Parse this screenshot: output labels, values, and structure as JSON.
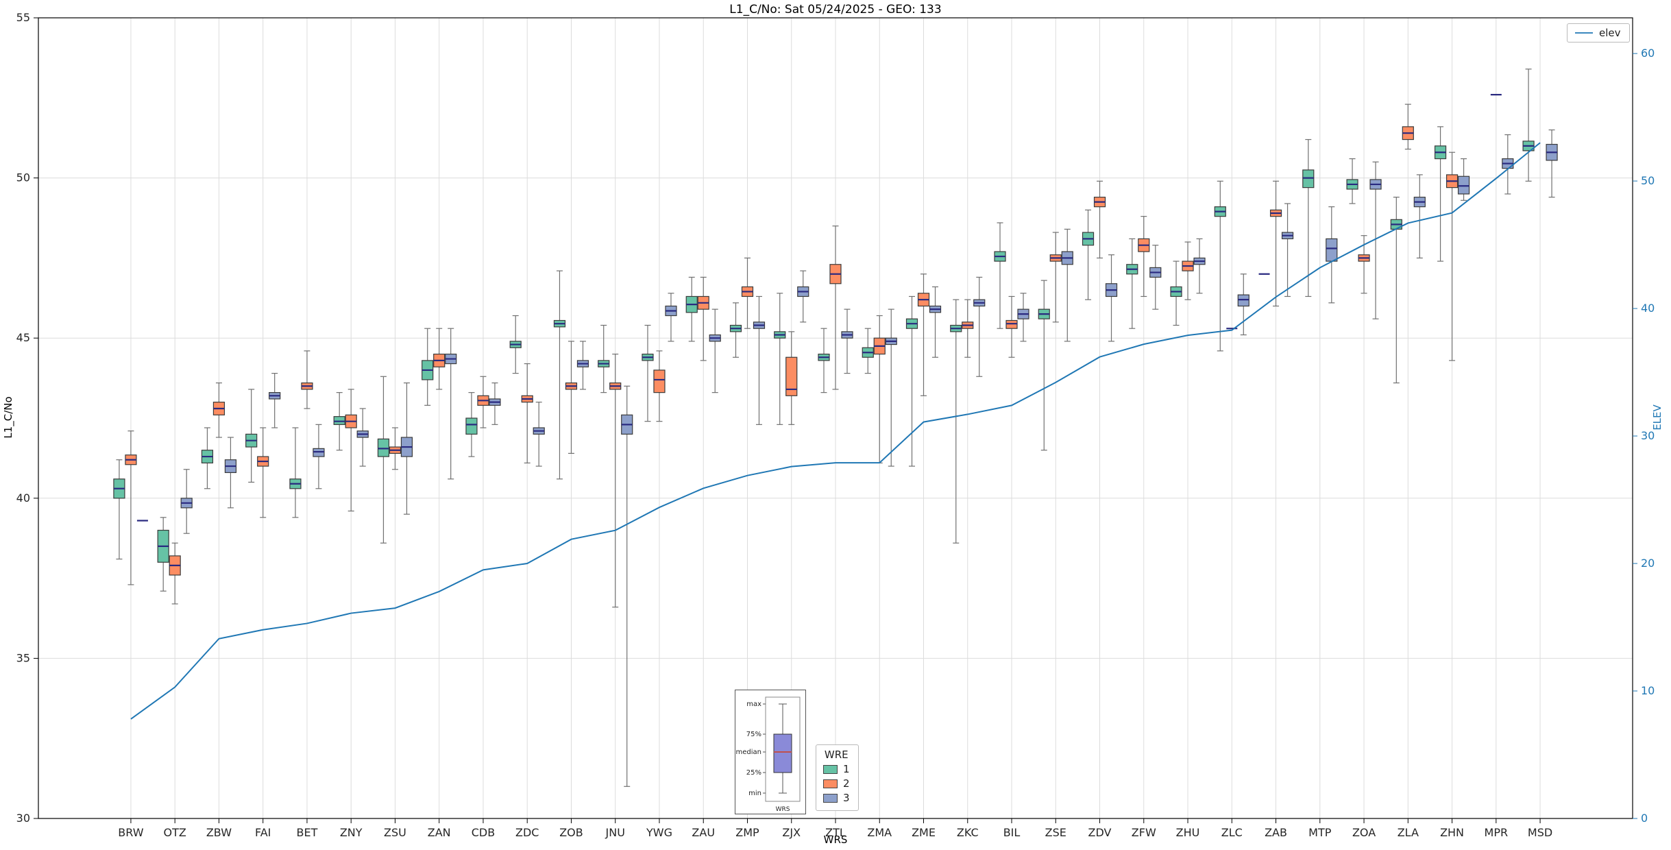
{
  "chart_data": {
    "type": "boxplot+line",
    "title": "L1_C/No: Sat 05/24/2025 - GEO: 133",
    "xlabel": "WRS",
    "ylabel_left": "L1_C/No",
    "ylabel_right": "ELEV",
    "ylim_left": [
      30,
      55
    ],
    "ylim_right": [
      0,
      62.8
    ],
    "yticks_left": [
      30,
      35,
      40,
      45,
      50,
      55
    ],
    "yticks_right": [
      0,
      10,
      20,
      30,
      40,
      50,
      60
    ],
    "grid": true,
    "categories": [
      "BRW",
      "OTZ",
      "ZBW",
      "FAI",
      "BET",
      "ZNY",
      "ZSU",
      "ZAN",
      "CDB",
      "ZDC",
      "ZOB",
      "JNU",
      "YWG",
      "ZAU",
      "ZMP",
      "ZJX",
      "ZTL",
      "ZMA",
      "ZME",
      "ZKC",
      "BIL",
      "ZSE",
      "ZDV",
      "ZFW",
      "ZHU",
      "ZLC",
      "ZAB",
      "MTP",
      "ZOA",
      "ZLA",
      "ZHN",
      "MPR",
      "MSD"
    ],
    "box_value_order": [
      "min",
      "q1",
      "median",
      "q3",
      "max"
    ],
    "series": [
      {
        "name": "1",
        "color": "#66c2a5",
        "boxes": [
          [
            38.1,
            40.0,
            40.3,
            40.6,
            41.2
          ],
          [
            37.1,
            38.0,
            38.5,
            39.0,
            39.4
          ],
          [
            40.3,
            41.1,
            41.3,
            41.5,
            42.2
          ],
          [
            40.5,
            41.6,
            41.8,
            42.0,
            43.4
          ],
          [
            39.4,
            40.3,
            40.45,
            40.6,
            42.2
          ],
          [
            41.5,
            42.3,
            42.4,
            42.55,
            43.3
          ],
          [
            38.6,
            41.3,
            41.55,
            41.85,
            43.8
          ],
          [
            42.9,
            43.7,
            44.0,
            44.3,
            45.3
          ],
          [
            41.3,
            42.0,
            42.3,
            42.5,
            43.3
          ],
          [
            43.9,
            44.7,
            44.8,
            44.9,
            45.7
          ],
          [
            40.6,
            45.35,
            45.45,
            45.55,
            47.1
          ],
          [
            43.3,
            44.1,
            44.2,
            44.3,
            45.4
          ],
          [
            42.4,
            44.3,
            44.4,
            44.5,
            45.4
          ],
          [
            44.9,
            45.8,
            46.05,
            46.3,
            46.9
          ],
          [
            44.4,
            45.2,
            45.3,
            45.4,
            46.1
          ],
          [
            42.3,
            45.0,
            45.1,
            45.2,
            46.4
          ],
          [
            43.3,
            44.3,
            44.4,
            44.5,
            45.3
          ],
          [
            43.9,
            44.4,
            44.55,
            44.7,
            45.3
          ],
          [
            41.0,
            45.3,
            45.45,
            45.6,
            46.3
          ],
          [
            38.6,
            45.2,
            45.3,
            45.4,
            46.2
          ],
          [
            45.3,
            47.4,
            47.55,
            47.7,
            48.6
          ],
          [
            41.5,
            45.6,
            45.75,
            45.9,
            46.8
          ],
          [
            46.2,
            47.9,
            48.1,
            48.3,
            49.0
          ],
          [
            45.3,
            47.0,
            47.15,
            47.3,
            48.1
          ],
          [
            45.4,
            46.3,
            46.45,
            46.6,
            47.4
          ],
          [
            44.6,
            48.8,
            48.95,
            49.1,
            49.9
          ],
          [
            47.0,
            47.0,
            47.0,
            47.0,
            47.0
          ],
          [
            46.3,
            49.7,
            50.0,
            50.25,
            51.2
          ],
          [
            49.2,
            49.65,
            49.8,
            49.95,
            50.6
          ],
          [
            43.6,
            48.4,
            48.55,
            48.7,
            49.4
          ],
          [
            47.4,
            50.6,
            50.8,
            51.0,
            51.6
          ],
          null,
          [
            49.9,
            50.85,
            51.0,
            51.15,
            53.4
          ]
        ]
      },
      {
        "name": "2",
        "color": "#fc8d62",
        "boxes": [
          [
            37.3,
            41.05,
            41.2,
            41.35,
            42.1
          ],
          [
            36.7,
            37.6,
            37.9,
            38.2,
            38.6
          ],
          [
            41.9,
            42.6,
            42.8,
            43.0,
            43.6
          ],
          [
            39.4,
            41.0,
            41.15,
            41.3,
            42.2
          ],
          [
            42.8,
            43.4,
            43.5,
            43.6,
            44.6
          ],
          [
            39.6,
            42.2,
            42.4,
            42.6,
            43.4
          ],
          [
            40.9,
            41.4,
            41.5,
            41.6,
            42.2
          ],
          [
            43.4,
            44.1,
            44.3,
            44.5,
            45.3
          ],
          [
            42.2,
            42.9,
            43.05,
            43.2,
            43.8
          ],
          [
            41.1,
            43.0,
            43.1,
            43.2,
            44.2
          ],
          [
            41.4,
            43.4,
            43.5,
            43.6,
            44.9
          ],
          [
            36.6,
            43.4,
            43.5,
            43.6,
            44.5
          ],
          [
            42.4,
            43.3,
            43.7,
            44.0,
            44.6
          ],
          [
            44.3,
            45.9,
            46.1,
            46.3,
            46.9
          ],
          [
            45.3,
            46.3,
            46.45,
            46.6,
            47.5
          ],
          [
            42.3,
            43.2,
            43.4,
            44.4,
            45.2
          ],
          [
            43.4,
            46.7,
            47.0,
            47.3,
            48.5
          ],
          [
            41.1,
            44.5,
            44.75,
            45.0,
            45.7
          ],
          [
            43.2,
            46.0,
            46.2,
            46.4,
            47.0
          ],
          [
            44.4,
            45.3,
            45.4,
            45.5,
            46.2
          ],
          [
            44.4,
            45.3,
            45.45,
            45.55,
            46.3
          ],
          [
            45.5,
            47.4,
            47.5,
            47.6,
            48.3
          ],
          [
            47.5,
            49.1,
            49.25,
            49.4,
            49.9
          ],
          [
            46.3,
            47.7,
            47.9,
            48.1,
            48.8
          ],
          [
            46.2,
            47.1,
            47.25,
            47.4,
            48.0
          ],
          [
            45.3,
            45.3,
            45.3,
            45.3,
            45.3
          ],
          [
            46.0,
            48.8,
            48.9,
            49.0,
            49.9
          ],
          null,
          [
            46.4,
            47.4,
            47.5,
            47.6,
            48.2
          ],
          [
            50.9,
            51.2,
            51.4,
            51.6,
            52.3
          ],
          [
            44.3,
            49.7,
            49.9,
            50.1,
            50.8
          ],
          [
            52.6,
            52.6,
            52.6,
            52.6,
            52.6
          ],
          null
        ]
      },
      {
        "name": "3",
        "color": "#8da0cb",
        "boxes": [
          [
            39.3,
            39.3,
            39.3,
            39.3,
            39.3
          ],
          [
            38.9,
            39.7,
            39.85,
            40.0,
            40.9
          ],
          [
            39.7,
            40.8,
            41.0,
            41.2,
            41.9
          ],
          [
            42.2,
            43.1,
            43.2,
            43.3,
            43.9
          ],
          [
            40.3,
            41.3,
            41.45,
            41.55,
            42.3
          ],
          [
            41.0,
            41.9,
            42.0,
            42.1,
            42.8
          ],
          [
            39.5,
            41.3,
            41.6,
            41.9,
            43.6
          ],
          [
            40.6,
            44.2,
            44.35,
            44.5,
            45.3
          ],
          [
            42.3,
            42.9,
            43.0,
            43.1,
            43.6
          ],
          [
            41.0,
            42.0,
            42.1,
            42.2,
            43.0
          ],
          [
            43.4,
            44.1,
            44.2,
            44.3,
            44.9
          ],
          [
            31.0,
            42.0,
            42.3,
            42.6,
            43.5
          ],
          [
            44.9,
            45.7,
            45.85,
            46.0,
            46.4
          ],
          [
            43.3,
            44.9,
            45.0,
            45.1,
            45.9
          ],
          [
            42.3,
            45.3,
            45.4,
            45.5,
            46.3
          ],
          [
            45.5,
            46.3,
            46.45,
            46.6,
            47.1
          ],
          [
            43.9,
            45.0,
            45.1,
            45.2,
            45.9
          ],
          [
            41.0,
            44.8,
            44.9,
            45.0,
            45.9
          ],
          [
            44.4,
            45.8,
            45.9,
            46.0,
            46.6
          ],
          [
            43.8,
            46.0,
            46.1,
            46.2,
            46.9
          ],
          [
            44.9,
            45.6,
            45.75,
            45.9,
            46.4
          ],
          [
            44.9,
            47.3,
            47.5,
            47.7,
            48.4
          ],
          [
            44.9,
            46.3,
            46.5,
            46.7,
            47.6
          ],
          [
            45.9,
            46.9,
            47.05,
            47.2,
            47.9
          ],
          [
            46.4,
            47.3,
            47.4,
            47.5,
            48.1
          ],
          [
            45.1,
            46.0,
            46.2,
            46.35,
            47.0
          ],
          [
            46.3,
            48.1,
            48.2,
            48.3,
            49.2
          ],
          [
            46.1,
            47.4,
            47.8,
            48.1,
            49.1
          ],
          [
            45.6,
            49.65,
            49.8,
            49.95,
            50.5
          ],
          [
            47.5,
            49.1,
            49.25,
            49.4,
            50.1
          ],
          [
            49.3,
            49.5,
            49.75,
            50.05,
            50.6
          ],
          [
            49.5,
            50.3,
            50.45,
            50.6,
            51.35
          ],
          [
            49.4,
            50.55,
            50.8,
            51.05,
            51.5
          ]
        ]
      }
    ],
    "line": {
      "name": "elev",
      "color": "#1f77b4",
      "axis": "right",
      "values": [
        7.8,
        10.3,
        14.1,
        14.8,
        15.3,
        16.1,
        16.5,
        17.8,
        19.5,
        20.0,
        21.9,
        22.6,
        24.4,
        25.9,
        26.9,
        27.6,
        27.9,
        27.9,
        31.1,
        31.7,
        32.4,
        34.2,
        36.2,
        37.2,
        37.9,
        38.3,
        40.9,
        43.2,
        45.0,
        46.7,
        47.5,
        50.2,
        53.0
      ]
    },
    "legend": {
      "title": "WRE"
    },
    "inset": {
      "labels": [
        "max",
        "75%",
        "median",
        "25%",
        "min"
      ],
      "caption": "WRS",
      "box_color": "#8a8ad8",
      "median_color": "#c0504d"
    },
    "colors": {
      "median_line": "#2a2a80",
      "whisker": "#707070",
      "grid": "#dcdcdc",
      "axis": "#000000",
      "right_axis_text": "#1f77b4",
      "tick_text": "#262626"
    }
  }
}
